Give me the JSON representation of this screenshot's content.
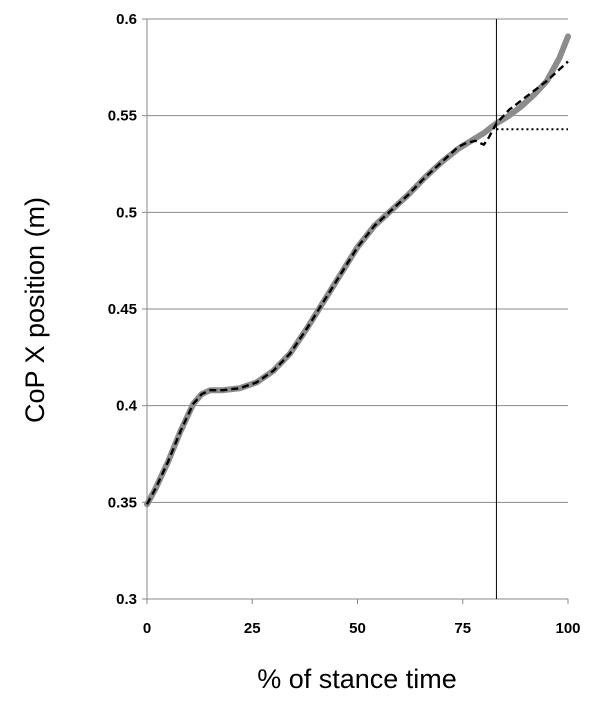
{
  "chart_data": {
    "type": "line",
    "title": "",
    "xlabel": "% of stance time",
    "ylabel": "CoP X position (m)",
    "xlim": [
      0,
      100
    ],
    "ylim": [
      0.3,
      0.6
    ],
    "x_ticks": [
      "0",
      "25",
      "50",
      "75",
      "100"
    ],
    "y_ticks": [
      "0.3",
      "0.35",
      "0.4",
      "0.45",
      "0.5",
      "0.55",
      "0.6"
    ],
    "grid": "horizontal",
    "legend": "none",
    "vertical_marker_x": 83,
    "series": [
      {
        "style": "solid-gray-thick",
        "color": "#8c8c8c",
        "x": [
          0,
          2,
          5,
          8,
          11,
          13,
          15,
          18,
          22,
          26,
          30,
          34,
          38,
          42,
          46,
          50,
          54,
          58,
          62,
          66,
          70,
          74,
          77,
          80,
          83,
          86,
          89,
          92,
          95,
          98,
          100
        ],
        "y": [
          0.349,
          0.357,
          0.371,
          0.387,
          0.401,
          0.406,
          0.408,
          0.408,
          0.409,
          0.412,
          0.418,
          0.427,
          0.44,
          0.454,
          0.468,
          0.482,
          0.493,
          0.501,
          0.509,
          0.518,
          0.526,
          0.533,
          0.537,
          0.541,
          0.546,
          0.55,
          0.555,
          0.561,
          0.568,
          0.58,
          0.591
        ]
      },
      {
        "style": "dashed-black",
        "color": "#000000",
        "x": [
          0,
          2,
          5,
          8,
          11,
          13,
          15,
          18,
          22,
          26,
          30,
          34,
          38,
          42,
          46,
          50,
          54,
          58,
          62,
          66,
          70,
          74,
          76,
          78,
          80,
          81,
          83,
          86,
          89,
          92,
          95,
          98,
          100
        ],
        "y": [
          0.349,
          0.357,
          0.371,
          0.387,
          0.401,
          0.406,
          0.408,
          0.408,
          0.409,
          0.412,
          0.418,
          0.427,
          0.44,
          0.454,
          0.468,
          0.482,
          0.493,
          0.501,
          0.509,
          0.518,
          0.526,
          0.534,
          0.536,
          0.537,
          0.535,
          0.538,
          0.546,
          0.553,
          0.558,
          0.563,
          0.568,
          0.574,
          0.578
        ]
      },
      {
        "style": "dotted-black",
        "color": "#000000",
        "x": [
          83,
          100
        ],
        "y": [
          0.543,
          0.543
        ]
      }
    ]
  }
}
